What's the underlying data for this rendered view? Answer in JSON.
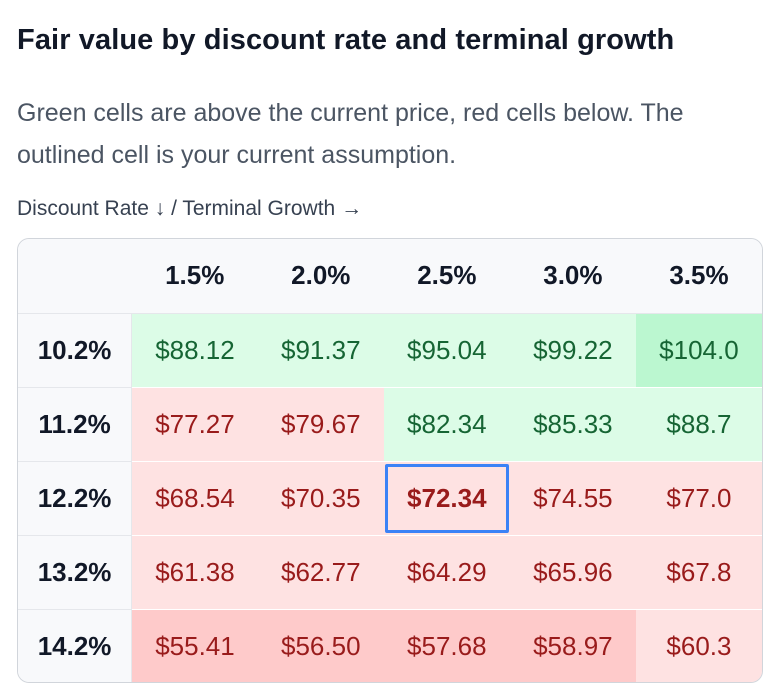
{
  "title": "Fair value by discount rate and terminal growth",
  "subtitle": "Green cells are above the current price, red cells below. The outlined cell is your current assumption.",
  "axis_caption": "Discount Rate ↓ / Terminal Growth →",
  "columns": [
    "1.5%",
    "2.0%",
    "2.5%",
    "3.0%",
    "3.5%"
  ],
  "rows": [
    {
      "rate": "10.2%",
      "values": [
        "$88.12",
        "$91.37",
        "$95.04",
        "$99.22",
        "$104.0"
      ],
      "tones": [
        "green",
        "green",
        "green",
        "green",
        "green-strong"
      ]
    },
    {
      "rate": "11.2%",
      "values": [
        "$77.27",
        "$79.67",
        "$82.34",
        "$85.33",
        "$88.7"
      ],
      "tones": [
        "red",
        "red",
        "green",
        "green",
        "green"
      ]
    },
    {
      "rate": "12.2%",
      "values": [
        "$68.54",
        "$70.35",
        "$72.34",
        "$74.55",
        "$77.0"
      ],
      "tones": [
        "red",
        "red",
        "current",
        "red",
        "red"
      ]
    },
    {
      "rate": "13.2%",
      "values": [
        "$61.38",
        "$62.77",
        "$64.29",
        "$65.96",
        "$67.8"
      ],
      "tones": [
        "red",
        "red",
        "red",
        "red",
        "red"
      ]
    },
    {
      "rate": "14.2%",
      "values": [
        "$55.41",
        "$56.50",
        "$57.68",
        "$58.97",
        "$60.3"
      ],
      "tones": [
        "red-strong",
        "red-strong",
        "red-strong",
        "red-strong",
        "red"
      ]
    }
  ],
  "colors": {
    "above_price": "#dcfce7",
    "below_price": "#fee2e2",
    "outline": "#3b82f6"
  }
}
